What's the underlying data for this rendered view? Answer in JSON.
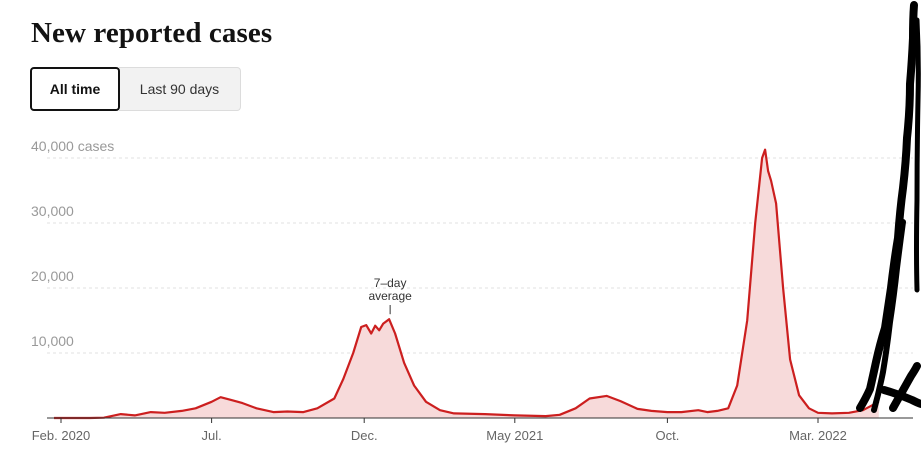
{
  "header": {
    "title": "New reported cases"
  },
  "toggle": {
    "all_time": "All time",
    "last_90": "Last 90 days"
  },
  "chart_data": {
    "type": "area",
    "title": "New reported cases",
    "ylabel": "",
    "xlabel": "",
    "ylim": [
      0,
      40000
    ],
    "y_ticks": [
      {
        "value": 10000,
        "label": "10,000"
      },
      {
        "value": 20000,
        "label": "20,000"
      },
      {
        "value": 30000,
        "label": "30,000"
      },
      {
        "value": 40000,
        "label": "40,000 cases"
      }
    ],
    "x_ticks": [
      {
        "date": "2020-02-01",
        "label": "Feb. 2020"
      },
      {
        "date": "2020-07-01",
        "label": "Jul."
      },
      {
        "date": "2020-12-01",
        "label": "Dec."
      },
      {
        "date": "2021-05-01",
        "label": "May 2021"
      },
      {
        "date": "2021-10-01",
        "label": "Oct."
      },
      {
        "date": "2022-03-01",
        "label": "Mar. 2022"
      }
    ],
    "grid": true,
    "series": [
      {
        "name": "7-day average",
        "color": "#cc1f1f",
        "fill": "#f7dada",
        "points": [
          [
            "2020-01-25",
            0
          ],
          [
            "2020-03-01",
            0
          ],
          [
            "2020-03-15",
            50
          ],
          [
            "2020-04-01",
            600
          ],
          [
            "2020-04-15",
            400
          ],
          [
            "2020-05-01",
            900
          ],
          [
            "2020-05-15",
            800
          ],
          [
            "2020-06-01",
            1100
          ],
          [
            "2020-06-15",
            1500
          ],
          [
            "2020-07-01",
            2500
          ],
          [
            "2020-07-10",
            3200
          ],
          [
            "2020-07-20",
            2800
          ],
          [
            "2020-08-01",
            2300
          ],
          [
            "2020-08-15",
            1500
          ],
          [
            "2020-09-01",
            900
          ],
          [
            "2020-09-15",
            1000
          ],
          [
            "2020-10-01",
            900
          ],
          [
            "2020-10-15",
            1500
          ],
          [
            "2020-11-01",
            3000
          ],
          [
            "2020-11-10",
            6000
          ],
          [
            "2020-11-20",
            10000
          ],
          [
            "2020-11-28",
            14000
          ],
          [
            "2020-12-03",
            14300
          ],
          [
            "2020-12-08",
            13000
          ],
          [
            "2020-12-12",
            14200
          ],
          [
            "2020-12-16",
            13500
          ],
          [
            "2020-12-20",
            14500
          ],
          [
            "2020-12-26",
            15200
          ],
          [
            "2021-01-01",
            13000
          ],
          [
            "2021-01-10",
            8500
          ],
          [
            "2021-01-20",
            5000
          ],
          [
            "2021-02-01",
            2500
          ],
          [
            "2021-02-15",
            1200
          ],
          [
            "2021-03-01",
            700
          ],
          [
            "2021-04-01",
            600
          ],
          [
            "2021-05-01",
            400
          ],
          [
            "2021-06-01",
            300
          ],
          [
            "2021-06-15",
            500
          ],
          [
            "2021-07-01",
            1500
          ],
          [
            "2021-07-15",
            3000
          ],
          [
            "2021-08-01",
            3400
          ],
          [
            "2021-08-15",
            2600
          ],
          [
            "2021-09-01",
            1400
          ],
          [
            "2021-09-15",
            1100
          ],
          [
            "2021-10-01",
            900
          ],
          [
            "2021-10-15",
            900
          ],
          [
            "2021-11-01",
            1200
          ],
          [
            "2021-11-10",
            900
          ],
          [
            "2021-11-20",
            1100
          ],
          [
            "2021-12-01",
            1500
          ],
          [
            "2021-12-10",
            5000
          ],
          [
            "2021-12-20",
            15000
          ],
          [
            "2021-12-28",
            30000
          ],
          [
            "2022-01-04",
            40000
          ],
          [
            "2022-01-07",
            41300
          ],
          [
            "2022-01-10",
            38000
          ],
          [
            "2022-01-13",
            36500
          ],
          [
            "2022-01-18",
            33000
          ],
          [
            "2022-01-25",
            20000
          ],
          [
            "2022-02-01",
            9000
          ],
          [
            "2022-02-10",
            3500
          ],
          [
            "2022-02-20",
            1500
          ],
          [
            "2022-03-01",
            800
          ],
          [
            "2022-03-15",
            700
          ],
          [
            "2022-04-01",
            800
          ],
          [
            "2022-04-15",
            1200
          ],
          [
            "2022-05-01",
            2500
          ]
        ]
      }
    ],
    "annotations": [
      {
        "text_lines": [
          "7–day",
          "average"
        ],
        "date": "2020-12-26",
        "value": 15200
      }
    ]
  }
}
